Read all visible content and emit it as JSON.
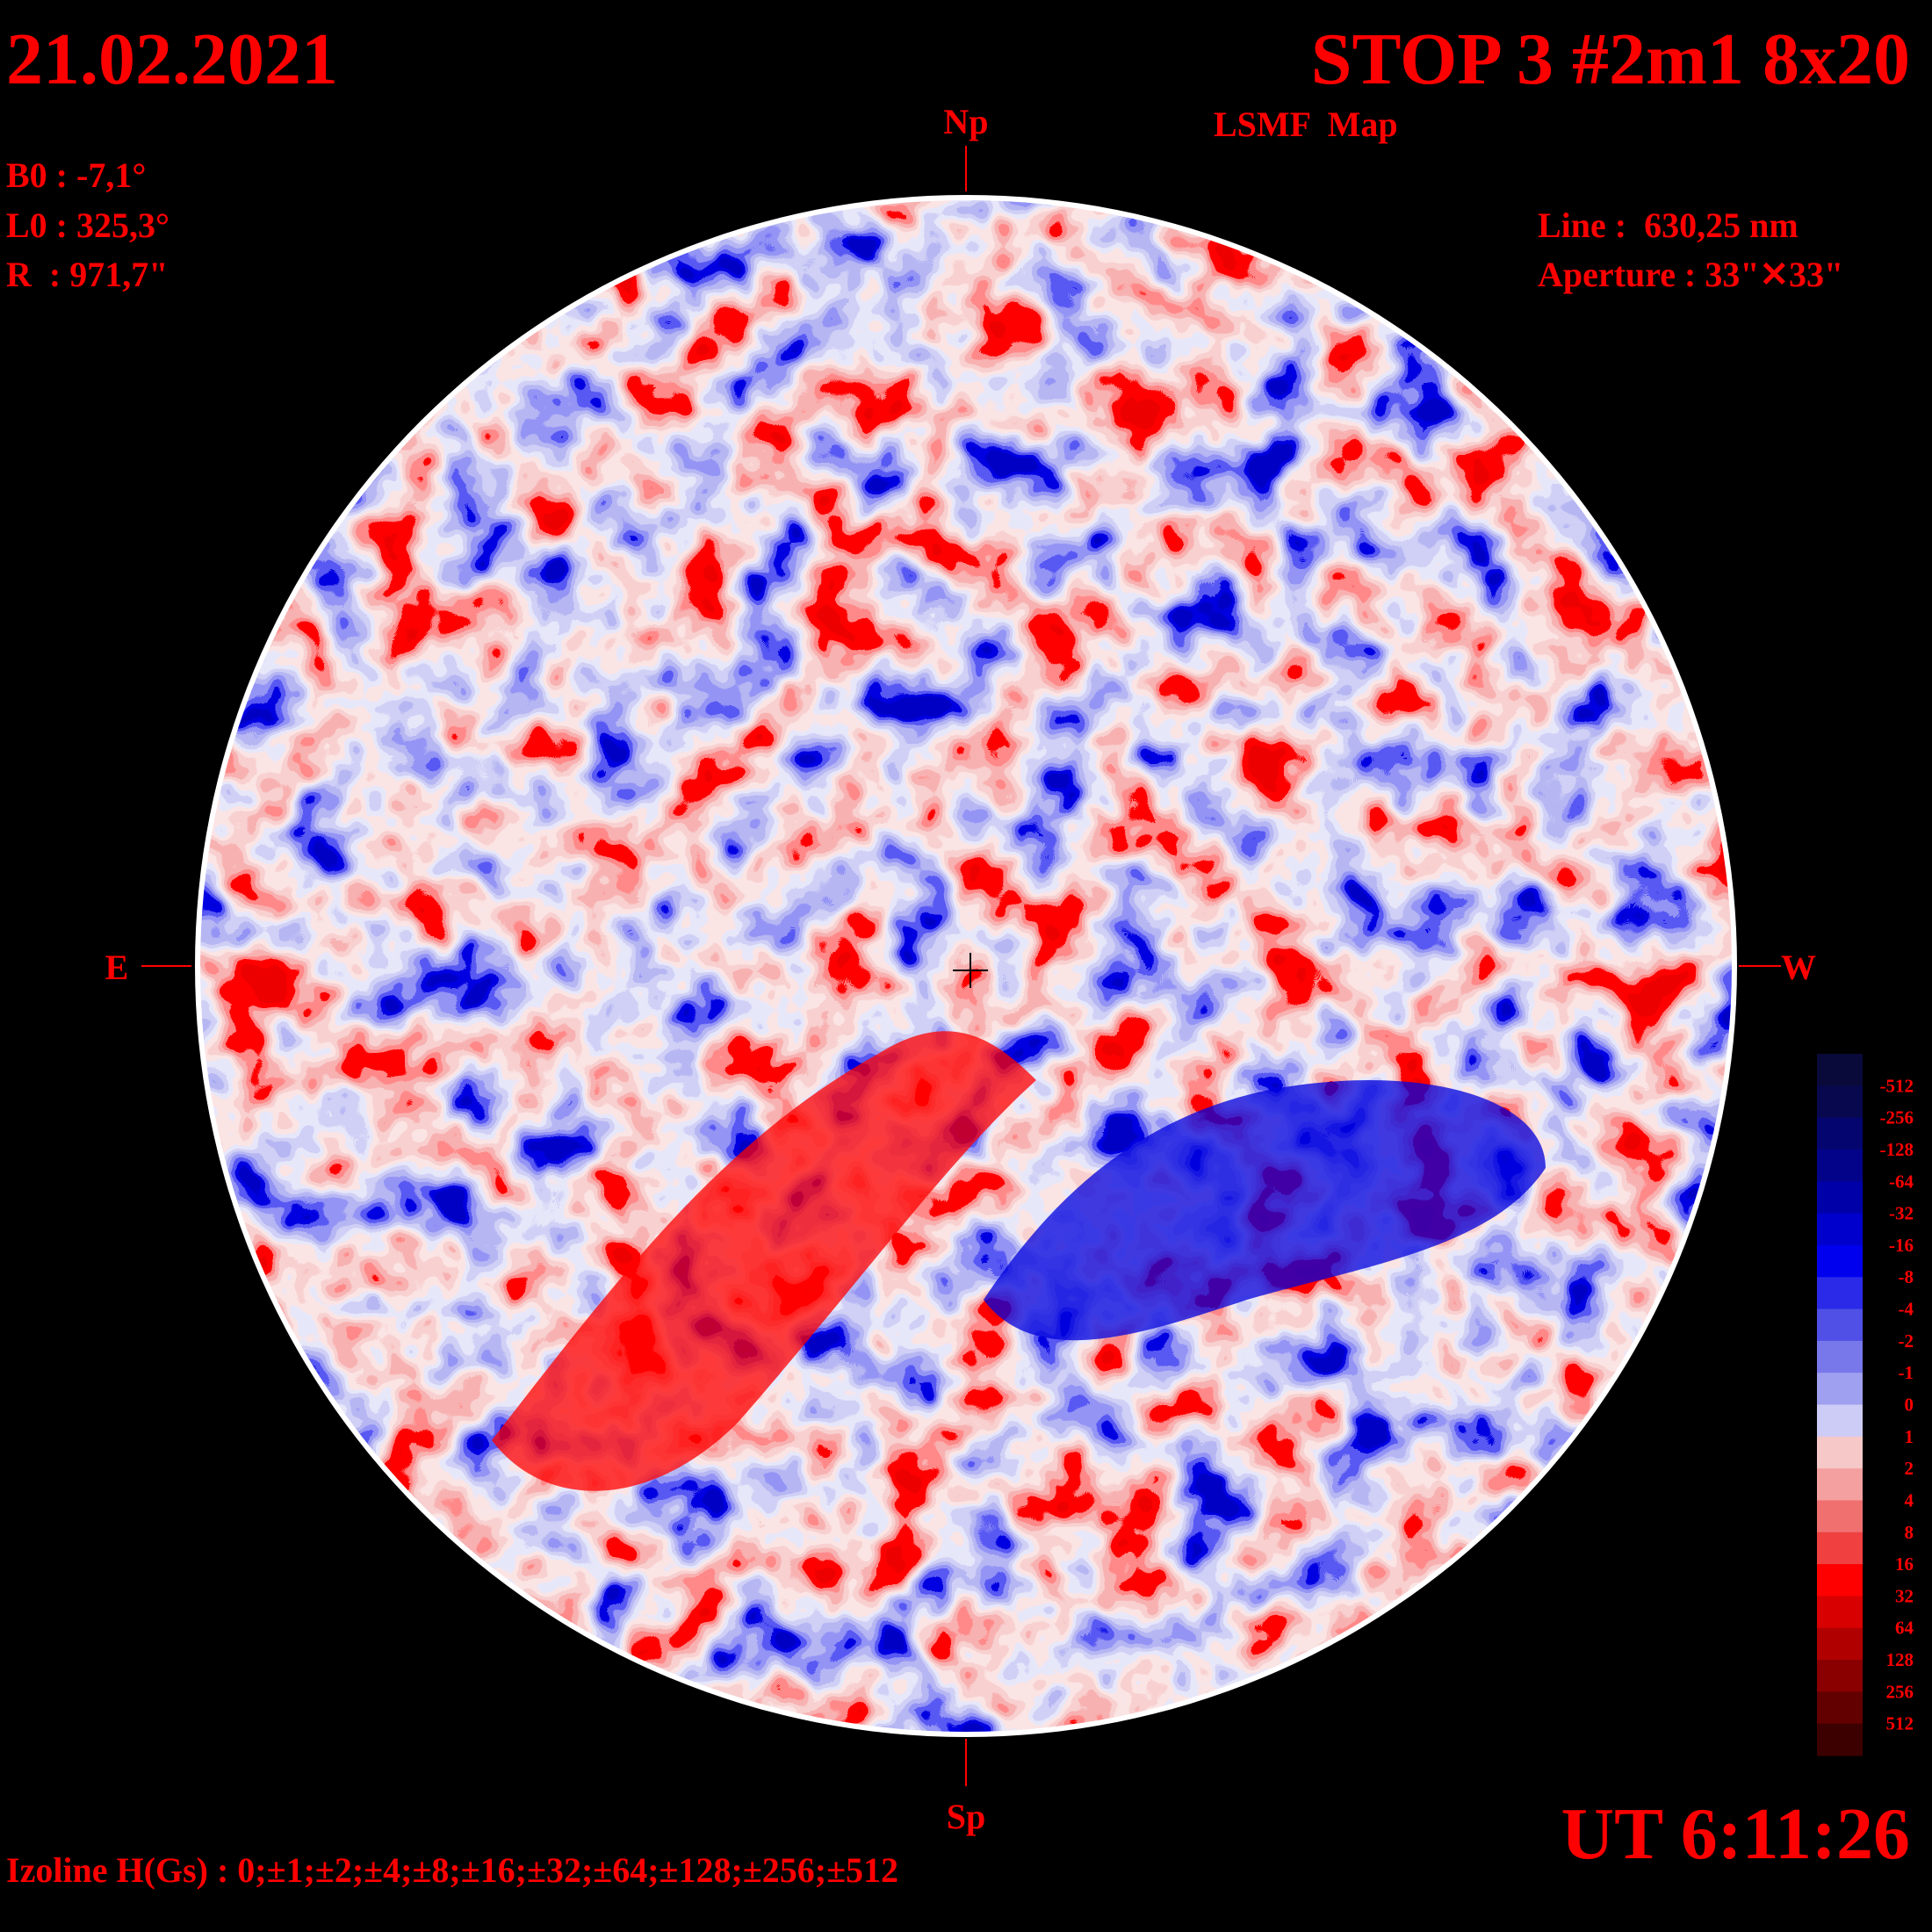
{
  "header": {
    "date": "21.02.2021",
    "title": "STOP 3 #2m1 8x20",
    "subtitle": "LSMF  Map",
    "time": "UT 6:11:26"
  },
  "parameters": {
    "b0": "B0 : -7,1°",
    "l0": "L0 : 325,3°",
    "radius": "R  : 971,7\"",
    "line": "Line :  630,25 nm",
    "aperture": "Aperture : 33\"✕33\""
  },
  "directions": {
    "north": "Np",
    "south": "Sp",
    "east": "E",
    "west": "W"
  },
  "footer": "Izoline H(Gs) : 0;±1;±2;±4;±8;±16;±32;±64;±128;±256;±512",
  "colorbar": {
    "colors": [
      "#0a0a3a",
      "#08084f",
      "#050570",
      "#03038a",
      "#0000a8",
      "#0000cc",
      "#0000ee",
      "#2a2ae8",
      "#5050e6",
      "#7878ea",
      "#a0a0f0",
      "#ccccf6",
      "#f6c8c8",
      "#f5a0a0",
      "#f07070",
      "#f04040",
      "#ff0000",
      "#d80000",
      "#b00000",
      "#8a0000",
      "#620000",
      "#3c0000"
    ],
    "labels": [
      "-512",
      "-256",
      "-128",
      "-64",
      "-32",
      "-16",
      "-8",
      "-4",
      "-2",
      "-1",
      "0",
      "1",
      "2",
      "4",
      "8",
      "16",
      "32",
      "64",
      "128",
      "256",
      "512"
    ]
  }
}
